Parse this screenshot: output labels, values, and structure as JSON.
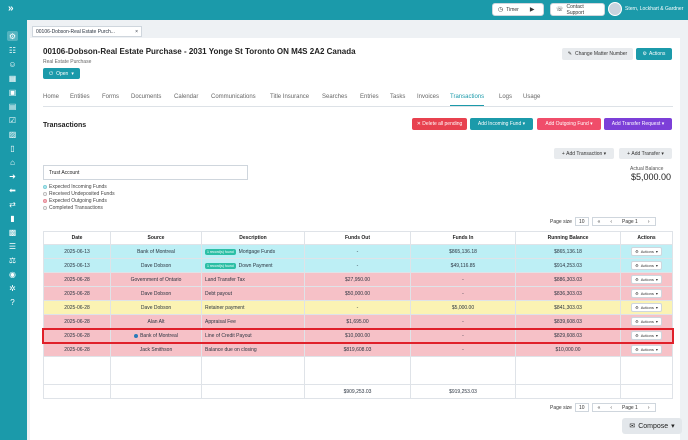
{
  "topbar": {
    "timer_label": "Timer",
    "support_label": "Contact Support",
    "user_name": "Stern, Lockhart & Gardner"
  },
  "doc_tab": {
    "label": "00106-Dobson-Real Estate Purch...",
    "close": "×"
  },
  "matter": {
    "title": "00106-Dobson-Real Estate Purchase - 2031 Yonge St Toronto ON M4S 2A2 Canada",
    "subtitle": "Real Estate Purchase",
    "status_label": "Open",
    "change_number_label": "Change Matter Number",
    "actions_label": "Actions"
  },
  "tabs": [
    "Home",
    "Entities",
    "Forms",
    "Documents",
    "Calendar",
    "Communications",
    "Title Insurance",
    "Searches",
    "Entries",
    "Tasks",
    "Invoices",
    "Transactions",
    "Logs",
    "Usage"
  ],
  "transactions": {
    "heading": "Transactions",
    "delete_pending": "Delete all pending",
    "add_incoming": "Add Incoming Fund",
    "add_outgoing": "Add Outgoing Fund",
    "add_transfer_request": "Add Transfer Request",
    "add_transaction": "Add Transaction",
    "add_transfer": "Add Transfer",
    "account": "Trust Account",
    "balance_label": "Actual Balance",
    "balance_value": "$5,000.00",
    "legend": [
      {
        "label": "Expected Incoming Funds",
        "color": "#b5ecf2"
      },
      {
        "label": "Received Undeposited Funds",
        "color": "#ffffff"
      },
      {
        "label": "Expected Outgoing Funds",
        "color": "#f7b8c0"
      },
      {
        "label": "Completed Transactions",
        "color": "#ffffff"
      }
    ],
    "pager": {
      "size_label": "Page size",
      "size": "10",
      "first": "«",
      "prev": "‹",
      "page": "Page 1",
      "next": "›"
    },
    "columns": [
      "Date",
      "Source",
      "Description",
      "Funds Out",
      "Funds In",
      "Running Balance",
      "Actions"
    ],
    "rows": [
      {
        "date": "2025-06-13",
        "source": "Bank of Montreal",
        "badge": "1 record(s) found",
        "desc": "Mortgage Funds",
        "out": "-",
        "in": "$865,136.18",
        "bal": "$865,136.18",
        "act": "Actions",
        "bg": "#bdeff5"
      },
      {
        "date": "2025-06-13",
        "source": "Dave Dobson",
        "badge": "1 record(s) found",
        "desc": "Down Payment",
        "out": "-",
        "in": "$49,116.85",
        "bal": "$914,253.03",
        "act": "Actions",
        "bg": "#bdeff5"
      },
      {
        "date": "2025-06-28",
        "source": "Government of Ontario",
        "badge": "",
        "desc": "Land Transfer Tax",
        "out": "$27,950.00",
        "in": "-",
        "bal": "$886,303.03",
        "act": "Actions",
        "bg": "#f6c1c7"
      },
      {
        "date": "2025-06-28",
        "source": "Dave Dobson",
        "badge": "",
        "desc": "Debt payout",
        "out": "$50,000.00",
        "in": "-",
        "bal": "$836,303.03",
        "act": "Actions",
        "bg": "#f6c1c7"
      },
      {
        "date": "2025-06-28",
        "source": "Dave Dobson",
        "badge": "",
        "desc": "Retainer payment",
        "out": "-",
        "in": "$5,000.00",
        "bal": "$841,303.03",
        "act": "Actions",
        "bg": "#fbf3b3"
      },
      {
        "date": "2025-06-28",
        "source": "Alan Alt",
        "badge": "",
        "desc": "Appraisal Fee",
        "out": "$1,695.00",
        "in": "-",
        "bal": "$839,608.03",
        "act": "Actions",
        "bg": "#f6c1c7"
      },
      {
        "date": "2025-06-28",
        "source": "Bank of Montreal",
        "badge": "",
        "desc": "Line of Credit Payout",
        "out": "$10,000.00",
        "in": "-",
        "bal": "$829,608.03",
        "act": "Actions",
        "bg": "#f6c1c7",
        "info": true
      },
      {
        "date": "2025-06-28",
        "source": "Jack Smithson",
        "badge": "",
        "desc": "Balance due on closing",
        "out": "$819,608.03",
        "in": "-",
        "bal": "$10,000.00",
        "act": "Actions",
        "bg": "#f6c1c7"
      }
    ],
    "totals": {
      "out": "$909,253.03",
      "in": "$919,253.03"
    }
  },
  "compose_label": "Compose"
}
